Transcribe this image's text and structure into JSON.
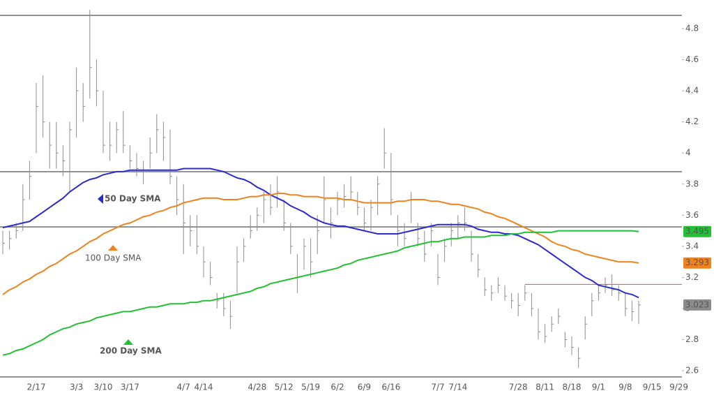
{
  "chart_data": {
    "type": "ohlc",
    "categories": [
      null,
      null,
      null,
      null,
      null,
      "2/17",
      null,
      null,
      null,
      null,
      null,
      "3/3",
      null,
      null,
      null,
      "3/10",
      null,
      null,
      null,
      "3/17",
      null,
      null,
      null,
      null,
      null,
      null,
      null,
      "4/7",
      null,
      null,
      "4/14",
      null,
      null,
      null,
      null,
      null,
      null,
      null,
      "4/28",
      null,
      null,
      null,
      "5/12",
      null,
      null,
      null,
      "5/19",
      null,
      null,
      null,
      "6/2",
      null,
      null,
      null,
      "6/9",
      null,
      null,
      null,
      "6/16",
      null,
      null,
      null,
      null,
      null,
      null,
      "7/7",
      null,
      null,
      "7/14",
      null,
      null,
      null,
      null,
      null,
      null,
      null,
      null,
      "7/28",
      null,
      null,
      null,
      "8/11",
      null,
      null,
      null,
      "8/18",
      null,
      null,
      null,
      "9/1",
      null,
      null,
      null,
      "9/8",
      null,
      null,
      null,
      "9/15",
      null,
      null,
      null,
      "9/29"
    ],
    "high": [
      3.5,
      3.5,
      3.55,
      3.8,
      3.95,
      4.45,
      4.5,
      4.2,
      4.2,
      4.05,
      4.2,
      4.55,
      4.45,
      4.92,
      4.6,
      4.4,
      4.2,
      4.2,
      4.27,
      4.05,
      4.0,
      3.95,
      4.1,
      4.25,
      4.2,
      4.15,
      3.85,
      3.8,
      3.6,
      3.6,
      3.4,
      3.3,
      3.1,
      3.1,
      3.05,
      3.4,
      3.45,
      3.6,
      3.65,
      3.75,
      3.8,
      3.85,
      3.7,
      3.55,
      3.35,
      3.45,
      3.45,
      3.6,
      3.85,
      3.65,
      3.75,
      3.8,
      3.85,
      3.75,
      3.65,
      3.7,
      3.85,
      4.16,
      4.0,
      3.6,
      3.55,
      3.75,
      3.55,
      3.5,
      3.55,
      3.35,
      3.45,
      3.55,
      3.6,
      3.65,
      3.5,
      3.35,
      3.2,
      3.15,
      3.2,
      3.15,
      3.1,
      3.1,
      3.15,
      3.1,
      3.0,
      2.9,
      2.95,
      3.0,
      2.85,
      2.82,
      2.75,
      2.95,
      3.1,
      3.15,
      3.2,
      3.22,
      3.15,
      3.1,
      3.05,
      3.05,
      null,
      null,
      null,
      null,
      null,
      null
    ],
    "low": [
      3.35,
      3.38,
      3.45,
      3.5,
      3.7,
      4.0,
      4.1,
      3.9,
      3.9,
      3.85,
      3.75,
      4.1,
      4.2,
      4.35,
      4.3,
      4.0,
      3.95,
      4.0,
      4.0,
      3.9,
      3.85,
      3.8,
      3.9,
      4.0,
      3.95,
      3.8,
      3.6,
      3.35,
      3.4,
      3.35,
      3.2,
      3.15,
      3.0,
      2.95,
      2.87,
      3.1,
      3.3,
      3.45,
      3.5,
      3.55,
      3.6,
      3.65,
      3.5,
      3.35,
      3.1,
      3.25,
      3.2,
      3.35,
      3.55,
      3.45,
      3.6,
      3.65,
      3.7,
      3.6,
      3.5,
      3.5,
      3.6,
      3.9,
      3.6,
      3.4,
      3.4,
      3.55,
      3.4,
      3.3,
      3.4,
      3.15,
      3.3,
      3.4,
      3.45,
      3.5,
      3.3,
      3.2,
      3.08,
      3.05,
      3.1,
      3.05,
      3.0,
      2.95,
      3.05,
      2.95,
      2.8,
      2.78,
      2.85,
      2.9,
      2.75,
      2.7,
      2.62,
      2.8,
      2.95,
      3.05,
      3.1,
      3.08,
      3.05,
      2.95,
      2.92,
      2.9,
      null,
      null,
      null,
      null,
      null,
      null
    ],
    "close": [
      3.42,
      3.45,
      3.5,
      3.7,
      3.85,
      4.3,
      4.2,
      4.05,
      4.0,
      3.95,
      4.15,
      4.4,
      4.3,
      4.55,
      4.4,
      4.05,
      4.05,
      4.15,
      4.05,
      3.95,
      3.9,
      3.88,
      4.0,
      4.15,
      4.1,
      3.85,
      3.7,
      3.55,
      3.5,
      3.4,
      3.3,
      3.2,
      3.05,
      3.0,
      2.95,
      3.3,
      3.4,
      3.5,
      3.6,
      3.7,
      3.65,
      3.75,
      3.55,
      3.4,
      3.2,
      3.4,
      3.3,
      3.5,
      3.7,
      3.55,
      3.7,
      3.72,
      3.75,
      3.65,
      3.55,
      3.65,
      3.8,
      4.0,
      3.7,
      3.5,
      3.45,
      3.7,
      3.45,
      3.35,
      3.5,
      3.2,
      3.4,
      3.5,
      3.55,
      3.55,
      3.35,
      3.25,
      3.12,
      3.1,
      3.15,
      3.08,
      3.05,
      3.02,
      3.1,
      3.0,
      2.85,
      2.82,
      2.9,
      2.95,
      2.8,
      2.75,
      2.68,
      2.9,
      3.05,
      3.1,
      3.15,
      3.12,
      3.1,
      3.0,
      2.98,
      3.023,
      null,
      null,
      null,
      null,
      null,
      null
    ],
    "bar_color": "#8c8c8c",
    "series": [
      {
        "name": "50 Day SMA",
        "color": "#2a2ad0",
        "values": [
          3.52,
          3.53,
          3.54,
          3.55,
          3.56,
          3.59,
          3.62,
          3.65,
          3.68,
          3.71,
          3.75,
          3.78,
          3.81,
          3.83,
          3.84,
          3.86,
          3.87,
          3.88,
          3.88,
          3.89,
          3.89,
          3.89,
          3.89,
          3.89,
          3.89,
          3.89,
          3.89,
          3.9,
          3.9,
          3.9,
          3.9,
          3.9,
          3.89,
          3.88,
          3.86,
          3.84,
          3.83,
          3.81,
          3.78,
          3.76,
          3.73,
          3.71,
          3.69,
          3.66,
          3.64,
          3.62,
          3.59,
          3.57,
          3.55,
          3.54,
          3.53,
          3.53,
          3.52,
          3.51,
          3.5,
          3.49,
          3.48,
          3.48,
          3.48,
          3.48,
          3.49,
          3.5,
          3.51,
          3.52,
          3.53,
          3.54,
          3.54,
          3.54,
          3.54,
          3.54,
          3.53,
          3.51,
          3.5,
          3.49,
          3.49,
          3.48,
          3.48,
          3.47,
          3.45,
          3.43,
          3.41,
          3.38,
          3.35,
          3.32,
          3.29,
          3.26,
          3.23,
          3.2,
          3.18,
          3.15,
          3.14,
          3.13,
          3.12,
          3.1,
          3.09,
          3.07,
          null,
          null,
          null,
          null,
          null,
          null
        ]
      },
      {
        "name": "100 Day SMA",
        "color": "#f0821e",
        "values": [
          3.09,
          3.12,
          3.14,
          3.17,
          3.19,
          3.22,
          3.24,
          3.27,
          3.29,
          3.32,
          3.35,
          3.37,
          3.4,
          3.43,
          3.45,
          3.48,
          3.5,
          3.52,
          3.54,
          3.55,
          3.57,
          3.59,
          3.6,
          3.62,
          3.63,
          3.65,
          3.66,
          3.68,
          3.69,
          3.7,
          3.71,
          3.71,
          3.71,
          3.7,
          3.7,
          3.7,
          3.71,
          3.72,
          3.72,
          3.73,
          3.73,
          3.74,
          3.74,
          3.73,
          3.73,
          3.72,
          3.72,
          3.72,
          3.71,
          3.71,
          3.71,
          3.7,
          3.7,
          3.69,
          3.68,
          3.68,
          3.68,
          3.68,
          3.68,
          3.69,
          3.69,
          3.7,
          3.7,
          3.7,
          3.69,
          3.69,
          3.68,
          3.67,
          3.67,
          3.66,
          3.65,
          3.64,
          3.62,
          3.61,
          3.59,
          3.58,
          3.56,
          3.54,
          3.52,
          3.5,
          3.48,
          3.46,
          3.43,
          3.41,
          3.4,
          3.38,
          3.37,
          3.35,
          3.34,
          3.33,
          3.32,
          3.31,
          3.3,
          3.3,
          3.3,
          3.293,
          null,
          null,
          null,
          null,
          null,
          null
        ]
      },
      {
        "name": "200 Day SMA",
        "color": "#22c033",
        "values": [
          2.7,
          2.71,
          2.73,
          2.74,
          2.76,
          2.78,
          2.8,
          2.83,
          2.85,
          2.87,
          2.88,
          2.9,
          2.91,
          2.92,
          2.94,
          2.95,
          2.96,
          2.97,
          2.98,
          2.98,
          2.99,
          3.0,
          3.01,
          3.01,
          3.02,
          3.03,
          3.03,
          3.03,
          3.04,
          3.04,
          3.05,
          3.05,
          3.06,
          3.07,
          3.08,
          3.09,
          3.1,
          3.11,
          3.13,
          3.14,
          3.16,
          3.17,
          3.18,
          3.19,
          3.2,
          3.21,
          3.22,
          3.23,
          3.24,
          3.25,
          3.26,
          3.28,
          3.29,
          3.31,
          3.32,
          3.33,
          3.34,
          3.35,
          3.36,
          3.37,
          3.39,
          3.4,
          3.41,
          3.42,
          3.43,
          3.43,
          3.44,
          3.45,
          3.45,
          3.46,
          3.46,
          3.46,
          3.46,
          3.47,
          3.47,
          3.47,
          3.48,
          3.48,
          3.49,
          3.49,
          3.49,
          3.49,
          3.49,
          3.5,
          3.5,
          3.5,
          3.5,
          3.5,
          3.5,
          3.5,
          3.5,
          3.5,
          3.5,
          3.5,
          3.5,
          3.495,
          null,
          null,
          null,
          null,
          null,
          null
        ]
      }
    ],
    "hlines": [
      {
        "value": 4.885,
        "color": "#7a7a7a"
      },
      {
        "value": 3.88,
        "color": "#7a7a7a"
      },
      {
        "value": 3.525,
        "color": "#7a7a7a"
      },
      {
        "value": 2.56,
        "color": "#7a7a7a"
      },
      {
        "value": 3.155,
        "color": "#e8474a",
        "from": 78
      }
    ],
    "ylim": [
      2.524,
      4.984
    ],
    "yticks": [
      2.6,
      2.8,
      3,
      3.2,
      3.4,
      3.6,
      3.8,
      4,
      4.2,
      4.4,
      4.6,
      4.8
    ],
    "last_value_box_color": "#8c8c8c"
  }
}
